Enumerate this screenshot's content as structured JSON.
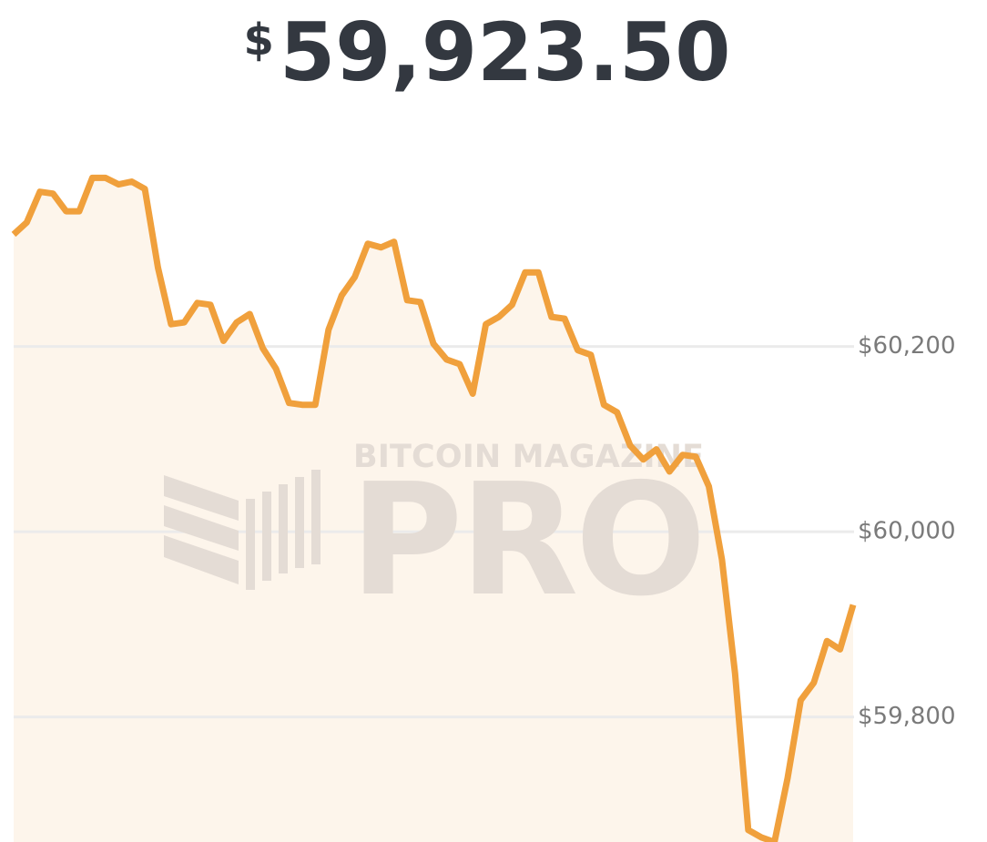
{
  "chart_data": {
    "type": "area-line",
    "title_prefix": "$",
    "title": "59,923.50",
    "watermark": [
      "BITCOIN MAGAZINE",
      "PRO"
    ],
    "values": [
      60321,
      60334,
      60367,
      60365,
      60346,
      60346,
      60382,
      60382,
      60375,
      60378,
      60370,
      60285,
      60224,
      60226,
      60247,
      60245,
      60206,
      60226,
      60235,
      60198,
      60176,
      60139,
      60137,
      60137,
      60218,
      60255,
      60275,
      60311,
      60307,
      60313,
      60250,
      60248,
      60203,
      60186,
      60181,
      60149,
      60224,
      60232,
      60245,
      60280,
      60280,
      60232,
      60230,
      60196,
      60191,
      60137,
      60129,
      60093,
      60078,
      60089,
      60065,
      60083,
      60081,
      60049,
      59970,
      59847,
      59678,
      59670,
      59665,
      59734,
      59818,
      59837,
      59882,
      59873,
      59921
    ],
    "color": "#f0a03c",
    "fill_color": "#fdf5eb",
    "ylim": [
      59665,
      60407
    ],
    "yticks": [
      {
        "value": 59800,
        "label": "$59,800"
      },
      {
        "value": 60000,
        "label": "$60,000"
      },
      {
        "value": 60200,
        "label": "$60,200"
      }
    ],
    "grid": true,
    "y_axis_side": "right"
  }
}
